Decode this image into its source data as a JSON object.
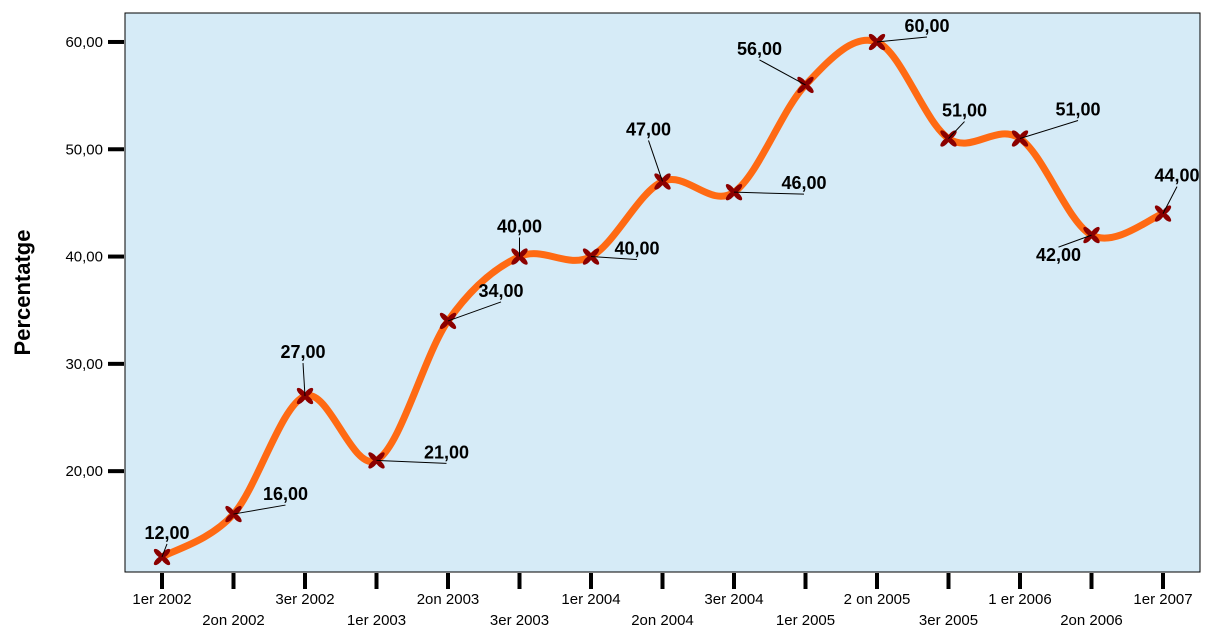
{
  "chart_data": {
    "type": "line",
    "title": "",
    "xlabel": "",
    "ylabel": "Percentatge",
    "categories": [
      "1er 2002",
      "2on 2002",
      "3er 2002",
      "1er 2003",
      "2on 2003",
      "3er 2003",
      "1er 2004",
      "2on 2004",
      "3er 2004",
      "1er 2005",
      "2 on 2005",
      "3er 2005",
      "1 er 2006",
      "2on 2006",
      "1er 2007"
    ],
    "series": [
      {
        "values": [
          12,
          16,
          27,
          21,
          34,
          40,
          40,
          47,
          46,
          56,
          60,
          51,
          51,
          42,
          44
        ]
      }
    ],
    "data_labels": [
      "12,00",
      "16,00",
      "27,00",
      "21,00",
      "34,00",
      "40,00",
      "40,00",
      "47,00",
      "46,00",
      "56,00",
      "60,00",
      "51,00",
      "51,00",
      "42,00",
      "44,00"
    ],
    "y_ticks": [
      20,
      30,
      40,
      50,
      60
    ],
    "y_tick_labels": [
      "20,00",
      "30,00",
      "40,00",
      "50,00",
      "60,00"
    ],
    "ylim": [
      10.6,
      62.7
    ],
    "grid": false,
    "legend": "none",
    "smooth": true,
    "colors": {
      "plot_background": "#d6ebf7",
      "line": "#ff6a13",
      "marker": "#8b0000",
      "axis": "#000000"
    }
  }
}
